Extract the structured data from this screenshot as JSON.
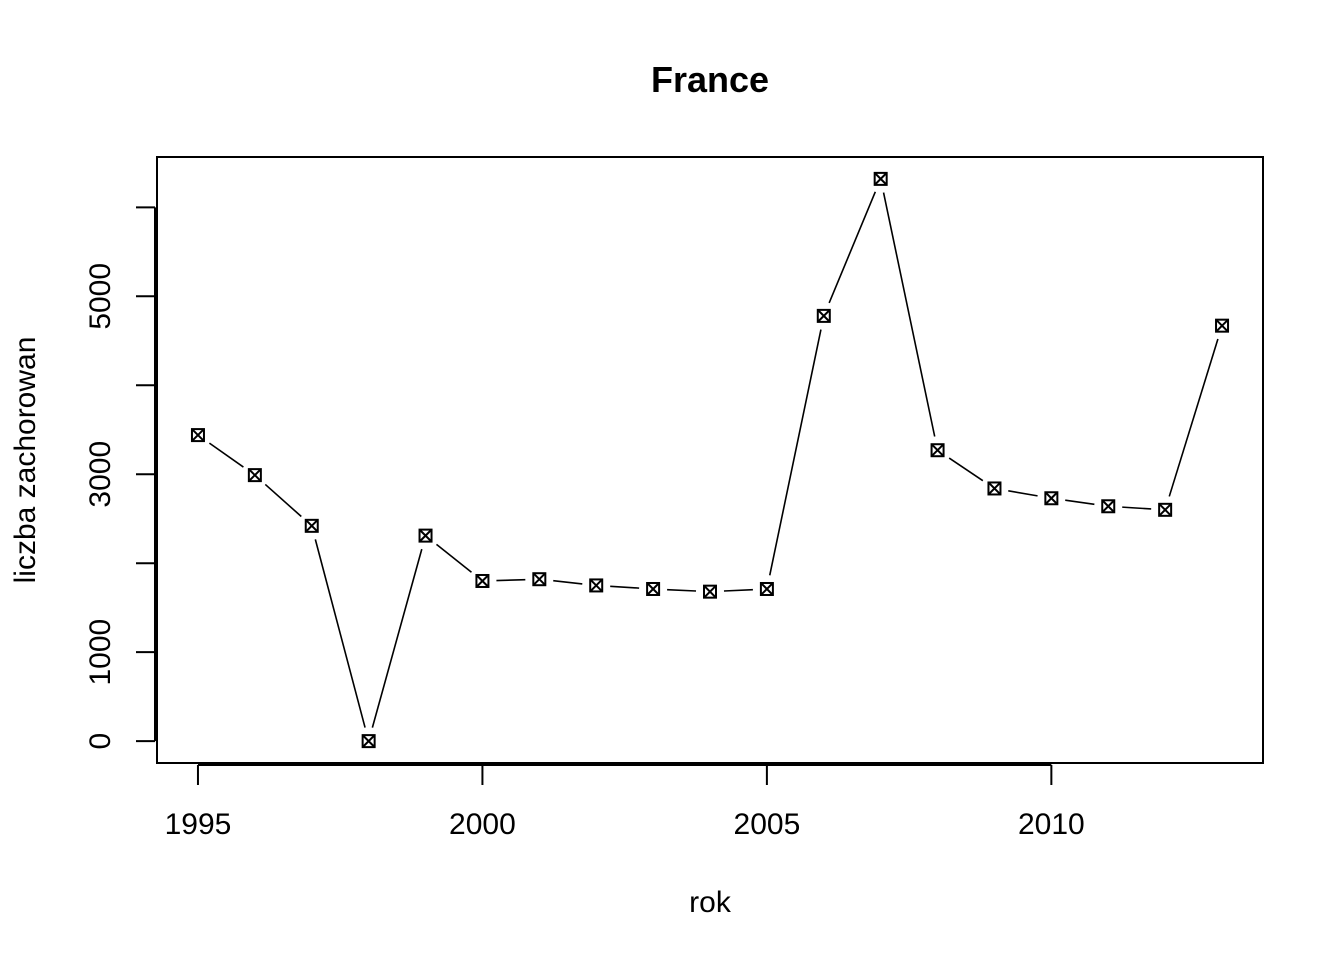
{
  "chart_data": {
    "type": "line",
    "title": "France",
    "xlabel": "rok",
    "ylabel": "liczba zachorowan",
    "x": [
      1995,
      1996,
      1997,
      1998,
      1999,
      2000,
      2001,
      2002,
      2003,
      2004,
      2005,
      2006,
      2007,
      2008,
      2009,
      2010,
      2011,
      2012,
      2013
    ],
    "series": [
      {
        "values": [
          3440,
          2990,
          2420,
          0,
          2310,
          1800,
          1820,
          1750,
          1710,
          1680,
          1710,
          4780,
          6320,
          3270,
          2840,
          2730,
          2640,
          2600,
          4670
        ]
      }
    ],
    "xlim": [
      1994.28,
      2013.72
    ],
    "ylim": [
      -246,
      6566
    ],
    "x_ticks": [
      1995,
      2000,
      2005,
      2010
    ],
    "y_ticks": [
      0,
      1000,
      2000,
      3000,
      4000,
      5000,
      6000
    ],
    "y_tick_labels": [
      "0",
      "1000",
      "",
      "3000",
      "",
      "5000",
      ""
    ],
    "grid": false,
    "legend": "none",
    "marker": "boxed-x",
    "line_color": "#000000"
  }
}
